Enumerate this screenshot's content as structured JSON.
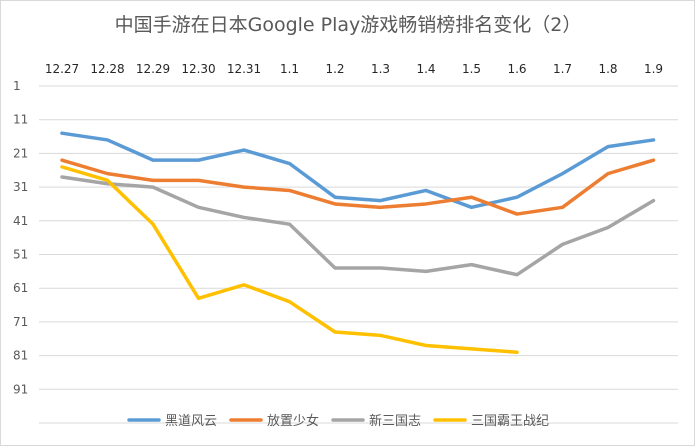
{
  "chart_data": {
    "type": "line",
    "title": "中国手游在日本Google Play游戏畅销榜排名变化（2）",
    "x": [
      "12.27",
      "12.28",
      "12.29",
      "12.30",
      "12.31",
      "1.1",
      "1.2",
      "1.3",
      "1.4",
      "1.5",
      "1.6",
      "1.7",
      "1.8",
      "1.9"
    ],
    "y_ticks": [
      "1",
      "11",
      "21",
      "31",
      "41",
      "51",
      "61",
      "71",
      "81",
      "91"
    ],
    "ylim": [
      1,
      101
    ],
    "y_reversed": true,
    "grid": true,
    "legend_position": "bottom",
    "series": [
      {
        "name": "黑道风云",
        "color": "#5b9bd5",
        "values": [
          15,
          17,
          23,
          23,
          20,
          24,
          34,
          35,
          32,
          37,
          34,
          27,
          19,
          17
        ]
      },
      {
        "name": "放置少女",
        "color": "#ed7d31",
        "values": [
          23,
          27,
          29,
          29,
          31,
          32,
          36,
          37,
          36,
          34,
          39,
          37,
          27,
          23
        ]
      },
      {
        "name": "新三国志",
        "color": "#a5a5a5",
        "values": [
          28,
          30,
          31,
          37,
          40,
          42,
          55,
          55,
          56,
          54,
          57,
          48,
          43,
          35
        ]
      },
      {
        "name": "三国霸王战纪",
        "color": "#ffc000",
        "values": [
          25,
          29,
          42,
          64,
          60,
          65,
          74,
          75,
          78,
          79,
          80,
          null,
          null,
          null
        ]
      }
    ]
  }
}
